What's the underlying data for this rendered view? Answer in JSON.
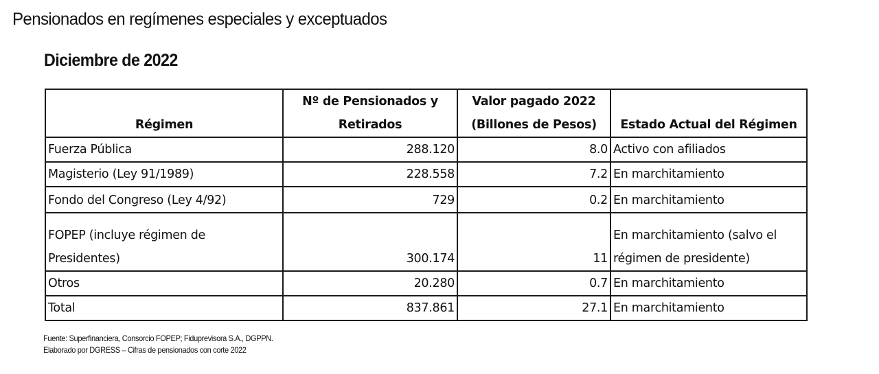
{
  "document": {
    "title": "Pensionados en regímenes especiales y exceptuados",
    "subtitle": "Diciembre de 2022"
  },
  "table": {
    "headers": {
      "regimen": "Régimen",
      "pensionados_l1": "Nº de Pensionados y",
      "pensionados_l2": "Retirados",
      "valor_l1": "Valor pagado 2022",
      "valor_l2": "(Billones de Pesos)",
      "estado": "Estado Actual del Régimen"
    },
    "rows": [
      {
        "regimen": "Fuerza Pública",
        "pensionados": "288.120",
        "valor": "8.0",
        "estado": "Activo con afiliados"
      },
      {
        "regimen": "Magisterio (Ley 91/1989)",
        "pensionados": "228.558",
        "valor": "7.2",
        "estado": "En marchitamiento"
      },
      {
        "regimen": "Fondo del Congreso (Ley 4/92)",
        "pensionados": "729",
        "valor": "0.2",
        "estado": "En marchitamiento"
      },
      {
        "regimen_l1": "FOPEP (incluye régimen de",
        "regimen_l2": "Presidentes)",
        "pensionados": "300.174",
        "valor": "11",
        "estado_l1": "En marchitamiento (salvo el",
        "estado_l2": "régimen de presidente)"
      },
      {
        "regimen": "Otros",
        "pensionados": "20.280",
        "valor": "0.7",
        "estado": "En marchitamiento"
      },
      {
        "regimen": "Total",
        "pensionados": "837.861",
        "valor": "27.1",
        "estado": "En marchitamiento"
      }
    ]
  },
  "footer": {
    "source": "Fuente: Superfinanciera, Consorcio FOPEP; Fiduprevisora S.A., DGPPN.",
    "prepared_by": "Elaborado por DGRESS – Cifras de pensionados con corte 2022"
  }
}
